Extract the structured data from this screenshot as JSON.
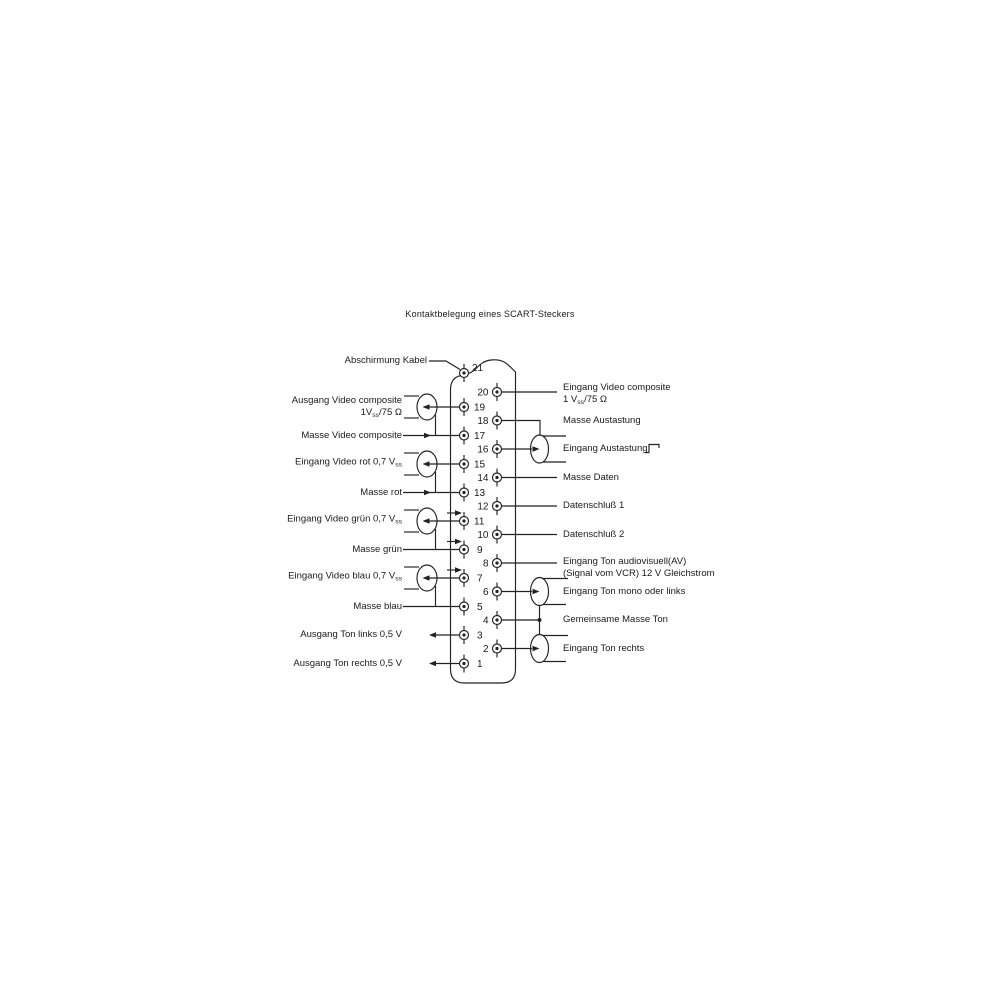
{
  "title": "Kontaktbelegung eines SCART-Steckers",
  "colors": {
    "line": "#222222",
    "text": "#1a1a1a",
    "background": "#ffffff"
  },
  "connector": {
    "pins": [
      {
        "number": "1",
        "signal": "Ausgang Ton rechts 0,5 V"
      },
      {
        "number": "2",
        "signal": "Eingang Ton rechts"
      },
      {
        "number": "3",
        "signal": "Ausgang Ton links 0,5 V"
      },
      {
        "number": "4",
        "signal": "Gemeinsame Masse Ton"
      },
      {
        "number": "5",
        "signal": "Masse blau"
      },
      {
        "number": "6",
        "signal": "Eingang Ton mono oder links"
      },
      {
        "number": "7",
        "signal": "Eingang Video blau 0,7 Vss"
      },
      {
        "number": "8",
        "signal": "Eingang Ton audiovisuell(AV) (Signal vom VCR) 12 V Gleichstrom"
      },
      {
        "number": "9",
        "signal": "Masse grün"
      },
      {
        "number": "10",
        "signal": "Datenschluß 2"
      },
      {
        "number": "11",
        "signal": "Eingang Video grün 0,7 Vss"
      },
      {
        "number": "12",
        "signal": "Datenschluß 1"
      },
      {
        "number": "13",
        "signal": "Masse rot"
      },
      {
        "number": "14",
        "signal": "Masse Daten"
      },
      {
        "number": "15",
        "signal": "Eingang Video rot 0,7 Vss"
      },
      {
        "number": "16",
        "signal": "Eingang Austastung"
      },
      {
        "number": "17",
        "signal": "Masse Video composite"
      },
      {
        "number": "18",
        "signal": "Masse Austastung"
      },
      {
        "number": "19",
        "signal": "Ausgang Video composite 1Vss/75 Ω"
      },
      {
        "number": "20",
        "signal": "Eingang Video composite 1 Vss/75 Ω"
      },
      {
        "number": "21",
        "signal": "Abschirmung Kabel"
      }
    ]
  },
  "left_labels": {
    "abschirmung": "Abschirmung Kabel",
    "ausgang_video_composite_1": "Ausgang Video composite",
    "ausgang_video_composite_2a": "1V",
    "ausgang_video_composite_2sub": "ss",
    "ausgang_video_composite_2b": "/75 Ω",
    "masse_video_composite": "Masse Video composite",
    "eingang_video_rot": "Eingang Video rot 0,7 V",
    "eingang_video_rot_sub": "ss",
    "masse_rot": "Masse rot",
    "eingang_video_gruen": "Eingang Video grün 0,7 V",
    "eingang_video_gruen_sub": "ss",
    "masse_gruen": "Masse grün",
    "eingang_video_blau": "Eingang Video blau 0,7 V",
    "eingang_video_blau_sub": "ss",
    "masse_blau": "Masse blau",
    "ausgang_ton_links": "Ausgang Ton links 0,5 V",
    "ausgang_ton_rechts": "Ausgang Ton rechts 0,5 V"
  },
  "right_labels": {
    "eingang_video_composite_1": "Eingang Video composite",
    "eingang_video_composite_2a": "1 V",
    "eingang_video_composite_2sub": "ss",
    "eingang_video_composite_2b": "/75 Ω",
    "masse_austastung": "Masse Austastung",
    "eingang_austastung": "Eingang Austastung",
    "masse_daten": "Masse Daten",
    "datenschluss_1": "Datenschluß 1",
    "datenschluss_2": "Datenschluß 2",
    "eingang_ton_av_1": "Eingang Ton audiovisuell(AV)",
    "eingang_ton_av_2": "(Signal vom VCR) 12 V Gleichstrom",
    "eingang_ton_mono": "Eingang Ton mono oder links",
    "gemeinsame_masse_ton": "Gemeinsame Masse Ton",
    "eingang_ton_rechts": "Eingang Ton rechts"
  }
}
